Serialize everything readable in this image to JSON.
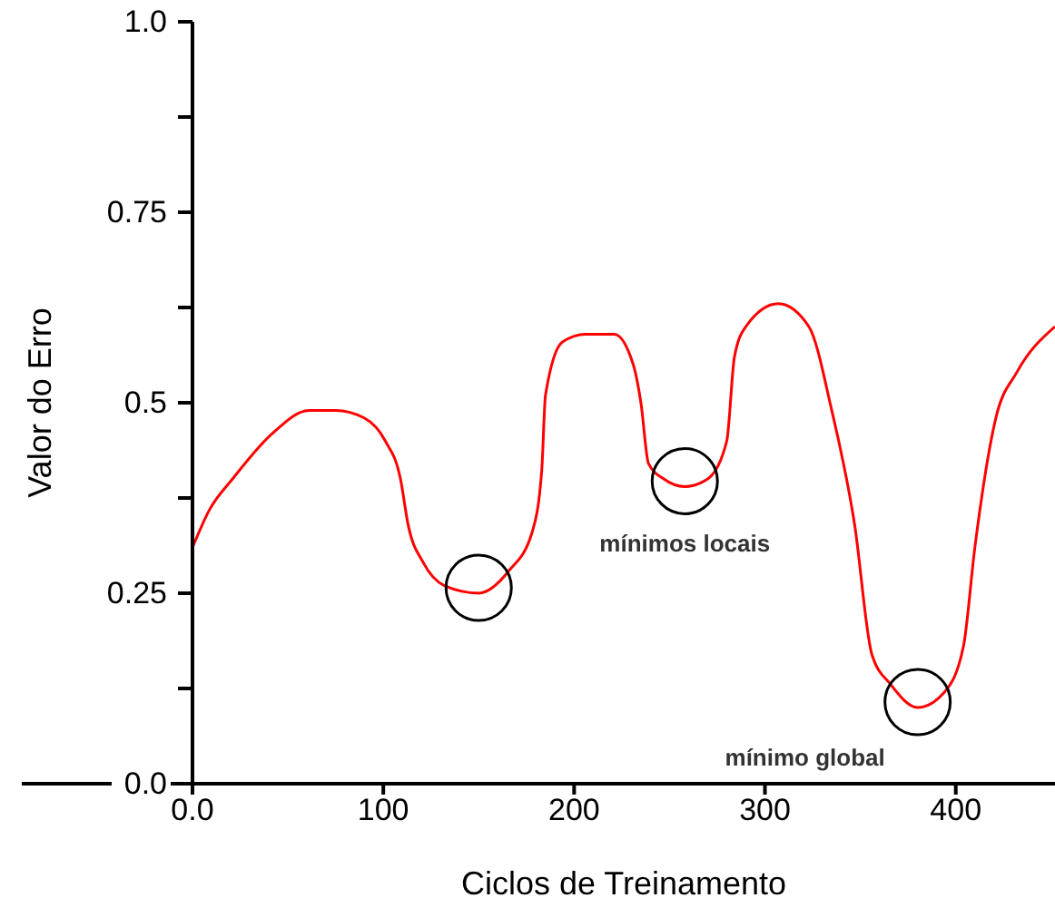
{
  "chart_data": {
    "type": "line",
    "xlabel": "Ciclos de Treinamento",
    "ylabel": "Valor do Erro",
    "x": [
      0,
      9,
      21,
      42,
      61,
      75,
      90,
      101,
      109,
      113,
      121,
      132,
      150,
      166,
      178,
      183,
      185,
      194,
      206,
      221,
      231,
      235,
      239,
      247,
      258,
      270,
      280,
      284,
      290,
      307,
      323,
      335,
      347,
      356,
      366,
      380,
      394,
      404,
      410,
      421,
      432,
      452
    ],
    "series": [
      {
        "color": "#ff0000",
        "values": [
          0.31,
          0.36,
          0.4,
          0.46,
          0.49,
          0.49,
          0.48,
          0.45,
          0.4,
          0.34,
          0.29,
          0.26,
          0.25,
          0.28,
          0.33,
          0.41,
          0.51,
          0.58,
          0.59,
          0.59,
          0.55,
          0.5,
          0.42,
          0.4,
          0.39,
          0.4,
          0.45,
          0.56,
          0.6,
          0.63,
          0.6,
          0.49,
          0.34,
          0.17,
          0.13,
          0.1,
          0.12,
          0.18,
          0.31,
          0.48,
          0.54,
          0.6
        ]
      }
    ],
    "xlim": [
      0,
      452
    ],
    "ylim": [
      0,
      1
    ],
    "xticks": [
      {
        "value": 0,
        "label": "0.0"
      },
      100,
      200,
      300,
      400
    ],
    "yticks": [
      {
        "value": 0,
        "label": "0.0"
      },
      {
        "value": 0.125,
        "label": null
      },
      0.25,
      {
        "value": 0.375,
        "label": null
      },
      0.5,
      {
        "value": 0.625,
        "label": null
      },
      0.75,
      {
        "value": 0.875,
        "label": null
      },
      {
        "value": 1,
        "label": "1.0"
      }
    ],
    "annotations": [
      {
        "text": "mínimos locais",
        "x": 258,
        "y": 0.39
      },
      {
        "text": "mínimo global",
        "x": 380,
        "y": 0.1
      }
    ],
    "grid": false,
    "legend": false,
    "marker": "none",
    "line_style": "solid"
  }
}
